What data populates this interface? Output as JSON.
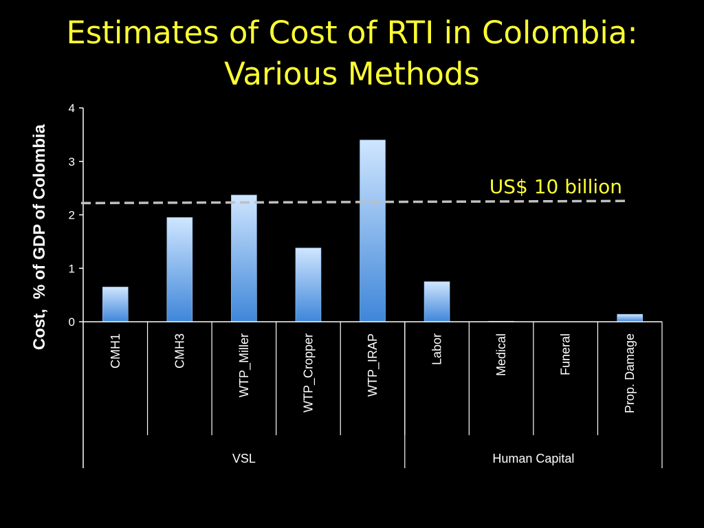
{
  "slide": {
    "title_line1": "Estimates of Cost of RTI in Colombia:",
    "title_line2": "Various Methods"
  },
  "chart_data": {
    "type": "bar",
    "title": "Estimates of Cost of RTI in Colombia: Various Methods",
    "ylabel_part1": "Cost,",
    "ylabel_part2": "% of GDP of Colombia",
    "ylim": [
      0,
      4
    ],
    "yticks": [
      "0",
      "1",
      "2",
      "3",
      "4"
    ],
    "categories": [
      "CMH1",
      "CMH3",
      "WTP_Miller",
      "WTP_Cropper",
      "WTP_IRAP",
      "Labor",
      "Medical",
      "Funeral",
      "Prop. Damage"
    ],
    "values": [
      0.65,
      1.95,
      2.37,
      1.38,
      3.4,
      0.75,
      0.01,
      0.0,
      0.14
    ],
    "groups": [
      {
        "name": "VSL",
        "count": 5
      },
      {
        "name": "Human Capital",
        "count": 4
      }
    ],
    "reference_line": {
      "label": "US$ 10 billion",
      "y_start": 2.22,
      "y_end": 2.26,
      "color": "#bfbfbf"
    },
    "bar_color_light": "#cfe6ff",
    "bar_color_dark": "#3f86d9",
    "axis_color": "#ffffff",
    "label_color": "#ffffff",
    "annotation_color": "#ffff33",
    "grid": false
  }
}
